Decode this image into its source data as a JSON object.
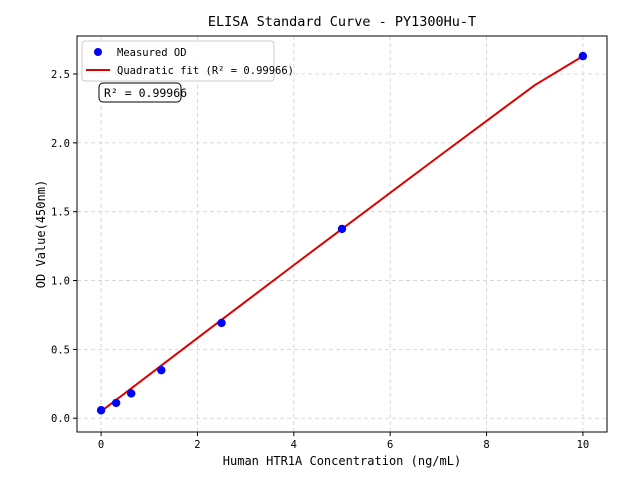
{
  "chart_data": {
    "type": "scatter",
    "title": "ELISA Standard Curve - PY1300Hu-T",
    "xlabel": "Human HTR1A Concentration (ng/mL)",
    "ylabel": "OD Value(450nm)",
    "xlim": [
      -0.5,
      10.5
    ],
    "ylim": [
      -0.1,
      2.776
    ],
    "xticks": [
      0,
      2,
      4,
      6,
      8,
      10
    ],
    "yticks": [
      "0.0",
      "0.5",
      "1.0",
      "1.5",
      "2.0",
      "2.5"
    ],
    "grid": true,
    "legend_position": "top-left",
    "series": [
      {
        "name": "Measured OD",
        "kind": "points",
        "color": "#0000ff",
        "x": [
          0,
          0.3125,
          0.625,
          1.25,
          2.5,
          5,
          10
        ],
        "y": [
          0.058,
          0.111,
          0.18,
          0.349,
          0.692,
          1.375,
          2.63
        ]
      },
      {
        "name": "Quadratic fit (R² = 0.99966)",
        "kind": "line",
        "color": "#dd0000",
        "x": [
          0,
          1,
          2,
          3,
          4,
          5,
          6,
          7,
          8,
          9,
          10
        ],
        "y": [
          0.05,
          0.316,
          0.582,
          0.847,
          1.112,
          1.375,
          1.637,
          1.899,
          2.159,
          2.419,
          2.63
        ]
      }
    ],
    "annotation": "R² = 0.99966"
  }
}
